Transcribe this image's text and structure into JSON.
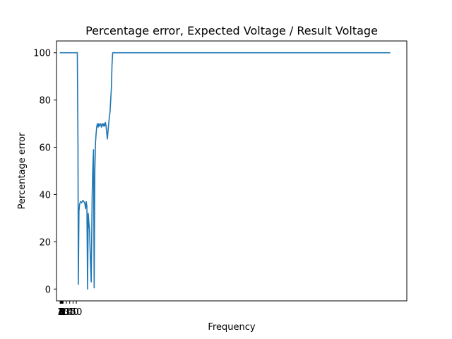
{
  "chart_data": {
    "type": "line",
    "title": "Percentage error, Expected Voltage / Result Voltage",
    "xlabel": "Frequency",
    "ylabel": "Percentage error",
    "ylim": [
      -5,
      105
    ],
    "xlim": [
      -10,
      1050
    ],
    "grid": false,
    "y_ticks": [
      0,
      20,
      40,
      60,
      80,
      100
    ],
    "y_tick_labels": [
      "0",
      "20",
      "40",
      "60",
      "80",
      "100"
    ],
    "x_tick_labels": [
      "1",
      "2",
      "3",
      "4",
      "5",
      "6",
      "7",
      "8",
      "9",
      "10",
      "20",
      "30",
      "40",
      "50"
    ],
    "x_ticks": [
      1,
      2,
      3,
      4,
      5,
      6,
      7,
      8,
      9,
      10,
      20,
      30,
      40,
      50
    ],
    "series": [
      {
        "color": "#1f77b4",
        "x": [
          0,
          20,
          40,
          50,
          53,
          55,
          56,
          58,
          60,
          63,
          66,
          70,
          73,
          76,
          78,
          80,
          82,
          84,
          86,
          88,
          90,
          92,
          95,
          98,
          100,
          102,
          104,
          106,
          108,
          110,
          112,
          114,
          116,
          118,
          120,
          122,
          124,
          126,
          128,
          130,
          132,
          134,
          136,
          138,
          140,
          142,
          144,
          146,
          148,
          150,
          152,
          154,
          156,
          158,
          160,
          162,
          164,
          166,
          168,
          170,
          172,
          174,
          176,
          178,
          180,
          185,
          190,
          300,
          500,
          700,
          1000
        ],
        "y": [
          100,
          100,
          100,
          100,
          100,
          60,
          2,
          33,
          36,
          37,
          36.5,
          37.5,
          37,
          36,
          34,
          37,
          35,
          0,
          32,
          28,
          25,
          15,
          3,
          40,
          52,
          59,
          0.5,
          50,
          62,
          66,
          69,
          70,
          68.5,
          70,
          69,
          69.5,
          70,
          68.5,
          69.5,
          70,
          69,
          70,
          69,
          70.5,
          69,
          66,
          63.5,
          67,
          70,
          73,
          75,
          80,
          85,
          95,
          100,
          100,
          100,
          100,
          100,
          100,
          100,
          100,
          100,
          100,
          100,
          100,
          100,
          100,
          100,
          100,
          100
        ]
      }
    ]
  }
}
